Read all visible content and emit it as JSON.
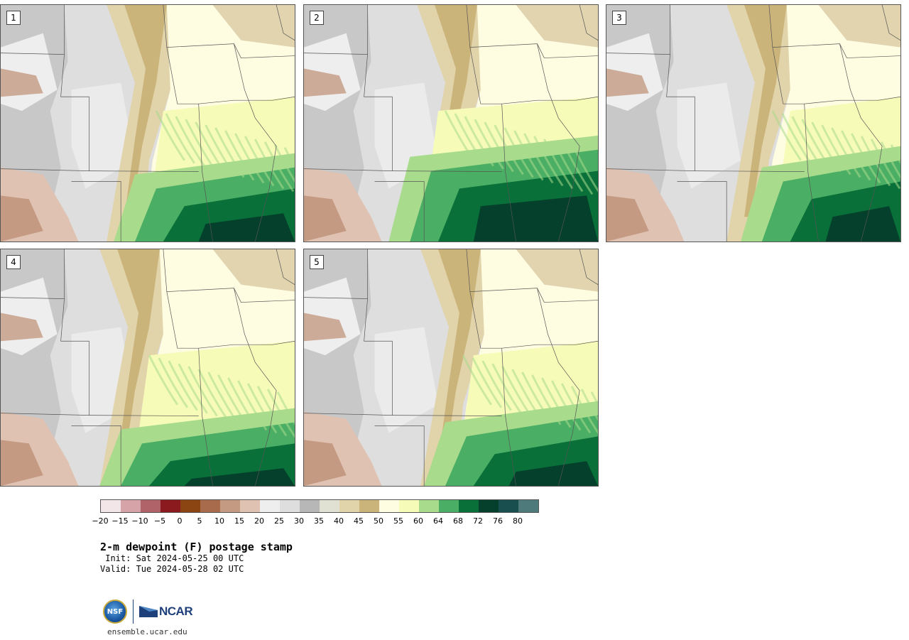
{
  "panels": [
    {
      "label": "1"
    },
    {
      "label": "2"
    },
    {
      "label": "3"
    },
    {
      "label": "4"
    },
    {
      "label": "5"
    }
  ],
  "colorbar": {
    "colors": [
      "#f3e6e8",
      "#d6a3a9",
      "#b06469",
      "#8b1a1f",
      "#8a4513",
      "#a86c4c",
      "#c49a83",
      "#dfc2b2",
      "#eeeeee",
      "#dedede",
      "#b7b7b7",
      "#e1e1d3",
      "#e1d3aa",
      "#cbb47a",
      "#fffde1",
      "#f7fbb8",
      "#a8db8c",
      "#4aae64",
      "#087038",
      "#04402b",
      "#194f4e",
      "#4e7a7b"
    ],
    "ticks": [
      "−20",
      "−15",
      "−10",
      "−5",
      "0",
      "5",
      "10",
      "15",
      "20",
      "25",
      "30",
      "35",
      "40",
      "45",
      "50",
      "55",
      "60",
      "64",
      "68",
      "72",
      "76",
      "80"
    ]
  },
  "title": "2-m dewpoint (F) postage stamp",
  "init": " Init: Sat 2024-05-25 00 UTC",
  "valid": "Valid: Tue 2024-05-28 02 UTC",
  "logos": {
    "nsf": "NSF",
    "ncar": "NCAR"
  },
  "site": "ensemble.ucar.edu"
}
